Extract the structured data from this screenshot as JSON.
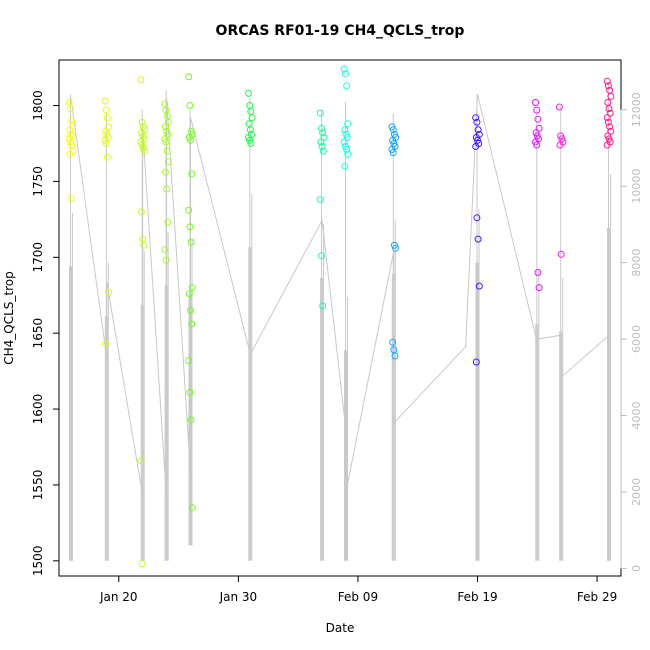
{
  "chart_data": {
    "type": "scatter",
    "title": "ORCAS RF01-19 CH4_QCLS_trop",
    "xlabel": "Date",
    "ylabel": "CH4_QCLS_trop",
    "x_axis": {
      "ticks": [
        "2016-01-20",
        "2016-01-30",
        "2016-02-09",
        "2016-02-19",
        "2016-02-29"
      ],
      "tick_labels": [
        "Jan 20",
        "Jan 30",
        "Feb 09",
        "Feb 19",
        "Feb 29"
      ],
      "range": [
        "2016-01-15",
        "2016-03-02"
      ]
    },
    "y_axis": {
      "ticks": [
        1500,
        1550,
        1600,
        1650,
        1700,
        1750,
        1800
      ],
      "range": [
        1490,
        1830
      ]
    },
    "y2_axis": {
      "ticks": [
        0,
        2000,
        4000,
        6000,
        8000,
        10000,
        12000
      ],
      "range": [
        -200,
        13300
      ],
      "color": "#bdbdbd",
      "note_color_line": "#c8c8c8"
    },
    "flights": [
      {
        "date": "2016-01-16",
        "color": "#f6ff1a",
        "ch4": [
          1802,
          1798,
          1790,
          1787,
          1784,
          1781,
          1780,
          1778,
          1776,
          1774,
          1770,
          1768,
          1739
        ],
        "alt_range": [
          200,
          8500
        ],
        "alt_peak": 12400
      },
      {
        "date": "2016-01-19",
        "color": "#e2ff1a",
        "ch4": [
          1803,
          1797,
          1792,
          1786,
          1783,
          1781,
          1779,
          1777,
          1775,
          1766,
          1677,
          1643
        ],
        "alt_range": [
          200,
          7200
        ],
        "alt_peak": 11900
      },
      {
        "date": "2016-01-22",
        "color": "#c0ff1a",
        "ch4": [
          1817,
          1789,
          1786,
          1784,
          1782,
          1780,
          1778,
          1776,
          1774,
          1772,
          1770,
          1730,
          1712,
          1708,
          1566,
          1498
        ],
        "alt_range": [
          200,
          7500
        ],
        "alt_peak": 12000
      },
      {
        "date": "2016-01-24",
        "color": "#a0ff1a",
        "ch4": [
          1801,
          1797,
          1793,
          1789,
          1786,
          1783,
          1781,
          1778,
          1776,
          1770,
          1763,
          1756,
          1745,
          1723,
          1705,
          1698
        ],
        "alt_range": [
          200,
          8000
        ],
        "alt_peak": 12500
      },
      {
        "date": "2016-01-26",
        "color": "#6cff1a",
        "ch4": [
          1819,
          1800,
          1783,
          1781,
          1779,
          1777,
          1755,
          1731,
          1720,
          1710,
          1680,
          1676,
          1665,
          1656,
          1632,
          1611,
          1593,
          1535
        ],
        "alt_range": [
          600,
          7800
        ],
        "alt_peak": 12000
      },
      {
        "date": "2016-01-31",
        "color": "#1aff46",
        "ch4": [
          1808,
          1800,
          1796,
          1792,
          1788,
          1784,
          1781,
          1779,
          1777,
          1775
        ],
        "alt_range": [
          200,
          9000
        ],
        "alt_peak": 12300
      },
      {
        "date": "2016-02-06",
        "color": "#1affa2",
        "ch4": [
          1795,
          1785,
          1782,
          1779,
          1776,
          1773,
          1770,
          1738,
          1701,
          1668
        ],
        "alt_range": [
          200,
          8200
        ],
        "alt_peak": 12000
      },
      {
        "date": "2016-02-08",
        "color": "#1affe4",
        "ch4": [
          1824,
          1821,
          1813,
          1788,
          1784,
          1781,
          1779,
          1776,
          1773,
          1771,
          1768,
          1760
        ],
        "alt_range": [
          200,
          6300
        ],
        "alt_peak": 12200
      },
      {
        "date": "2016-02-12",
        "color": "#1aa5ff",
        "ch4": [
          1786,
          1784,
          1781,
          1779,
          1777,
          1775,
          1773,
          1771,
          1769,
          1708,
          1706,
          1644,
          1639,
          1635
        ],
        "alt_range": [
          200,
          8300
        ],
        "alt_peak": 11900
      },
      {
        "date": "2016-02-19",
        "color": "#451aff",
        "ch4": [
          1792,
          1789,
          1784,
          1781,
          1779,
          1777,
          1775,
          1773,
          1726,
          1712,
          1681,
          1631
        ],
        "alt_range": [
          200,
          8600
        ],
        "alt_peak": 12400
      },
      {
        "date": "2016-02-24",
        "color": "#e01aff",
        "ch4": [
          1802,
          1797,
          1791,
          1785,
          1782,
          1780,
          1778,
          1776,
          1774,
          1690,
          1680
        ],
        "alt_range": [
          200,
          7000
        ],
        "alt_peak": 12000
      },
      {
        "date": "2016-02-26",
        "color": "#ff1ae4",
        "ch4": [
          1799,
          1780,
          1778,
          1776,
          1774,
          1702
        ],
        "alt_range": [
          200,
          6800
        ],
        "alt_peak": 12100
      },
      {
        "date": "2016-03-01",
        "color": "#ff1a8c",
        "ch4": [
          1816,
          1813,
          1810,
          1806,
          1802,
          1798,
          1795,
          1792,
          1789,
          1786,
          1783,
          1780,
          1778,
          1776,
          1774
        ],
        "alt_range": [
          200,
          9500
        ],
        "alt_peak": 12700
      }
    ],
    "connector_path": [
      [
        "2016-01-16",
        12300
      ],
      [
        "2016-01-19",
        5500
      ],
      [
        "2016-01-19",
        7500
      ],
      [
        "2016-01-22",
        1900
      ],
      [
        "2016-01-22",
        11500
      ],
      [
        "2016-01-24",
        1800
      ],
      [
        "2016-01-24",
        12300
      ],
      [
        "2016-01-26",
        2500
      ],
      [
        "2016-01-26",
        11800
      ],
      [
        "2016-01-31",
        5600
      ],
      [
        "2016-02-06",
        9100
      ],
      [
        "2016-02-08",
        3600
      ],
      [
        "2016-02-08",
        2000
      ],
      [
        "2016-02-12",
        8300
      ],
      [
        "2016-02-12",
        3800
      ],
      [
        "2016-02-18",
        5800
      ],
      [
        "2016-02-19",
        12400
      ],
      [
        "2016-02-24",
        5900
      ],
      [
        "2016-02-24",
        6000
      ],
      [
        "2016-02-26",
        6100
      ],
      [
        "2016-02-26",
        5000
      ],
      [
        "2016-03-01",
        6100
      ]
    ],
    "grid": false,
    "legend": "none"
  }
}
